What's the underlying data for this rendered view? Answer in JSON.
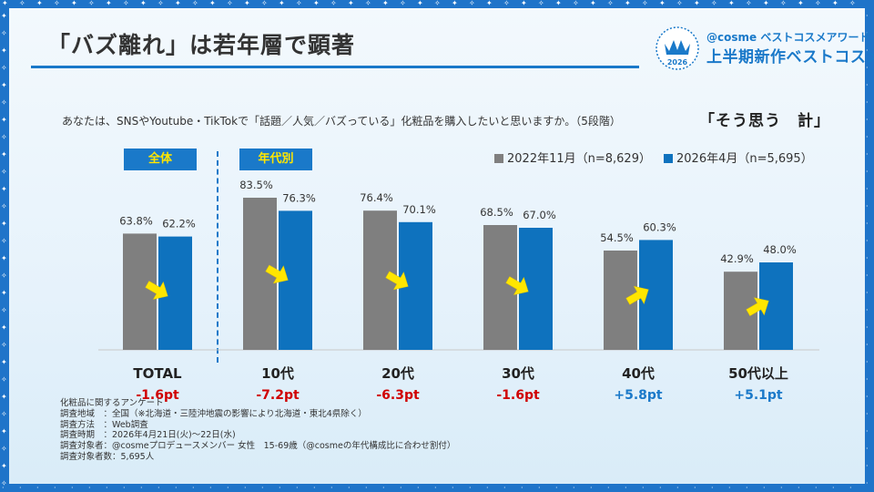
{
  "title": "「バズ離れ」は若年層で顕著",
  "award": {
    "badge_year": "2026",
    "line1": "@cosme ベストコスメアワード",
    "line2": "上半期新作ベストコスメ"
  },
  "question": "あなたは、SNSやYoutube・TikTokで「話題／人気／バズっている」化粧品を購入したいと思いますか。（5段階）",
  "question_strong": "「そう思う　計」",
  "group_labels": {
    "total": "全体",
    "by_age": "年代別"
  },
  "colors": {
    "series_2022": "#7f7f7f",
    "series_2026": "#0e72be",
    "accent_blue": "#1a79c9",
    "arrow": "#ffe600",
    "negative": "#d00000",
    "positive": "#1a79c9"
  },
  "chart_data": {
    "type": "bar",
    "categories": [
      "TOTAL",
      "10代",
      "20代",
      "30代",
      "40代",
      "50代以上"
    ],
    "series": [
      {
        "name": "2022年11月（n=8,629）",
        "values": [
          63.8,
          83.5,
          76.4,
          68.5,
          54.5,
          42.9
        ],
        "labels": [
          "63.8%",
          "83.5%",
          "76.4%",
          "68.5%",
          "54.5%",
          "42.9%"
        ]
      },
      {
        "name": "2026年4月（n=5,695）",
        "values": [
          62.2,
          76.3,
          70.1,
          67.0,
          60.3,
          48.0
        ],
        "labels": [
          "62.2%",
          "76.3%",
          "70.1%",
          "67.0%",
          "60.3%",
          "48.0%"
        ]
      }
    ],
    "differences": [
      "-1.6pt",
      "-7.2pt",
      "-6.3pt",
      "-1.6pt",
      "+5.8pt",
      "+5.1pt"
    ],
    "ylim": [
      0,
      100
    ],
    "legend": "top-right",
    "grid": false
  },
  "notes": [
    "化粧品に関するアンケート",
    "調査地域　：全国（※北海道・三陸沖地震の影響により北海道・東北4県除く）",
    "調査方法　：Web調査",
    "調査時期　：2026年4月21日(火)～22日(水)",
    "調査対象者：@cosmeプロデュースメンバー 女性　15-69歳（@cosmeの年代構成比に合わせ割付）",
    "調査対象者数：5,695人"
  ]
}
